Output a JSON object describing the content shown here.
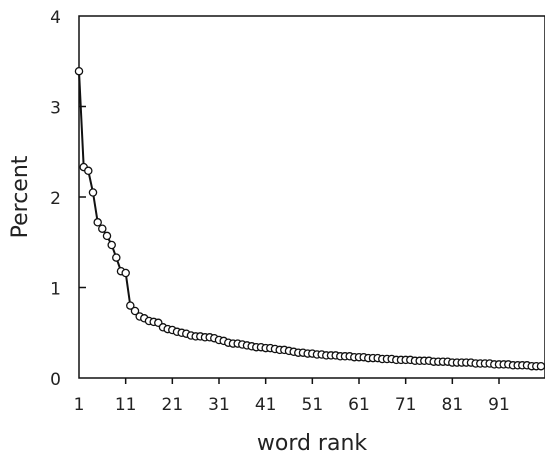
{
  "chart_data": {
    "type": "line",
    "title": "",
    "xlabel": "word rank",
    "ylabel": "Percent",
    "xlim": [
      1,
      100
    ],
    "ylim": [
      0,
      4
    ],
    "x_ticks": [
      "1",
      "11",
      "21",
      "31",
      "41",
      "51",
      "61",
      "71",
      "81",
      "91"
    ],
    "y_ticks": [
      "0",
      "1",
      "2",
      "3",
      "4"
    ],
    "grid": false,
    "legend": "none",
    "marker": "open-circle",
    "series": [
      {
        "x": [
          1,
          2,
          3,
          4,
          5,
          6,
          7,
          8,
          9,
          10,
          11,
          12,
          13,
          14,
          15,
          16,
          17,
          18,
          19,
          20,
          21,
          22,
          23,
          24,
          25,
          26,
          27,
          28,
          29,
          30,
          31,
          32,
          33,
          34,
          35,
          36,
          37,
          38,
          39,
          40,
          41,
          42,
          43,
          44,
          45,
          46,
          47,
          48,
          49,
          50,
          51,
          52,
          53,
          54,
          55,
          56,
          57,
          58,
          59,
          60,
          61,
          62,
          63,
          64,
          65,
          66,
          67,
          68,
          69,
          70,
          71,
          72,
          73,
          74,
          75,
          76,
          77,
          78,
          79,
          80,
          81,
          82,
          83,
          84,
          85,
          86,
          87,
          88,
          89,
          90,
          91,
          92,
          93,
          94,
          95,
          96,
          97,
          98,
          99,
          100
        ],
        "values": [
          3.39,
          2.33,
          2.29,
          2.05,
          1.72,
          1.65,
          1.57,
          1.47,
          1.33,
          1.18,
          1.16,
          0.8,
          0.74,
          0.68,
          0.66,
          0.63,
          0.62,
          0.61,
          0.56,
          0.54,
          0.53,
          0.51,
          0.5,
          0.49,
          0.47,
          0.46,
          0.46,
          0.45,
          0.45,
          0.44,
          0.42,
          0.41,
          0.39,
          0.38,
          0.38,
          0.37,
          0.36,
          0.35,
          0.34,
          0.34,
          0.33,
          0.33,
          0.32,
          0.31,
          0.31,
          0.3,
          0.29,
          0.28,
          0.28,
          0.27,
          0.27,
          0.26,
          0.26,
          0.25,
          0.25,
          0.25,
          0.24,
          0.24,
          0.24,
          0.23,
          0.23,
          0.23,
          0.22,
          0.22,
          0.22,
          0.21,
          0.21,
          0.21,
          0.2,
          0.2,
          0.2,
          0.2,
          0.19,
          0.19,
          0.19,
          0.19,
          0.18,
          0.18,
          0.18,
          0.18,
          0.17,
          0.17,
          0.17,
          0.17,
          0.17,
          0.16,
          0.16,
          0.16,
          0.16,
          0.15,
          0.15,
          0.15,
          0.15,
          0.14,
          0.14,
          0.14,
          0.14,
          0.13,
          0.13,
          0.13
        ]
      }
    ]
  }
}
